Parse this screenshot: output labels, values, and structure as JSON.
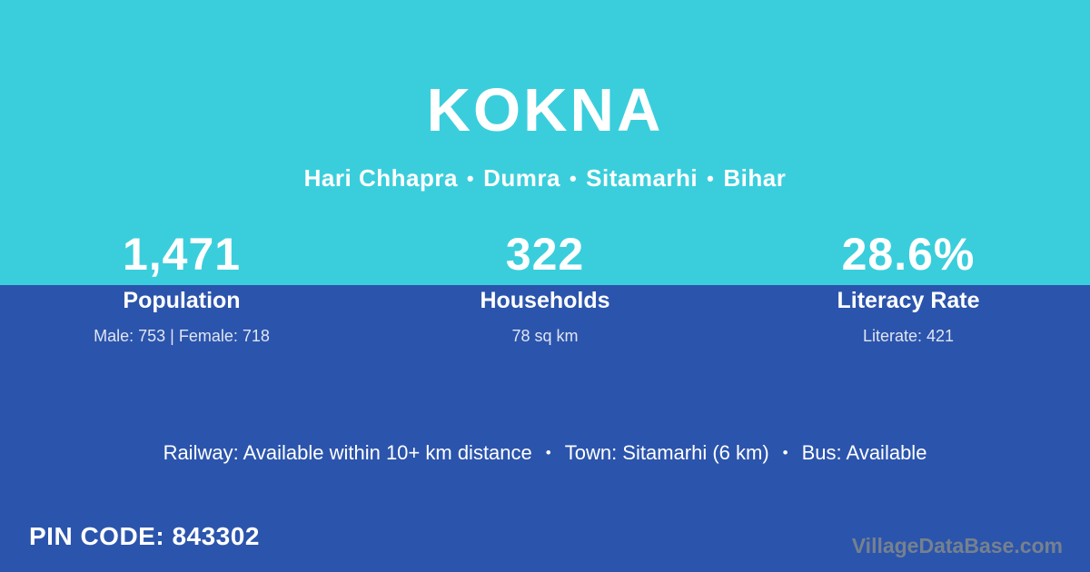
{
  "colors": {
    "top_background": "#3ACEDC",
    "bottom_background": "#2B54AC",
    "text": "#FFFFFF",
    "watermark_text": "#75818F"
  },
  "header": {
    "village_name": "KOKNA",
    "location": {
      "separator": "•",
      "items": [
        "Hari Chhapra",
        "Dumra",
        "Sitamarhi",
        "Bihar"
      ]
    }
  },
  "stats": [
    {
      "value": "1,471",
      "label": "Population",
      "detail": "Male: 753 | Female: 718"
    },
    {
      "value": "322",
      "label": "Households",
      "detail": "78 sq km"
    },
    {
      "value": "28.6%",
      "label": "Literacy Rate",
      "detail": "Literate: 421"
    }
  ],
  "amenities": {
    "separator": "•",
    "items": [
      "Railway: Available within 10+ km distance",
      "Town: Sitamarhi (6 km)",
      "Bus: Available"
    ]
  },
  "pin_code": {
    "label": "PIN CODE:",
    "value": "843302"
  },
  "watermark": "VillageDataBase.com"
}
